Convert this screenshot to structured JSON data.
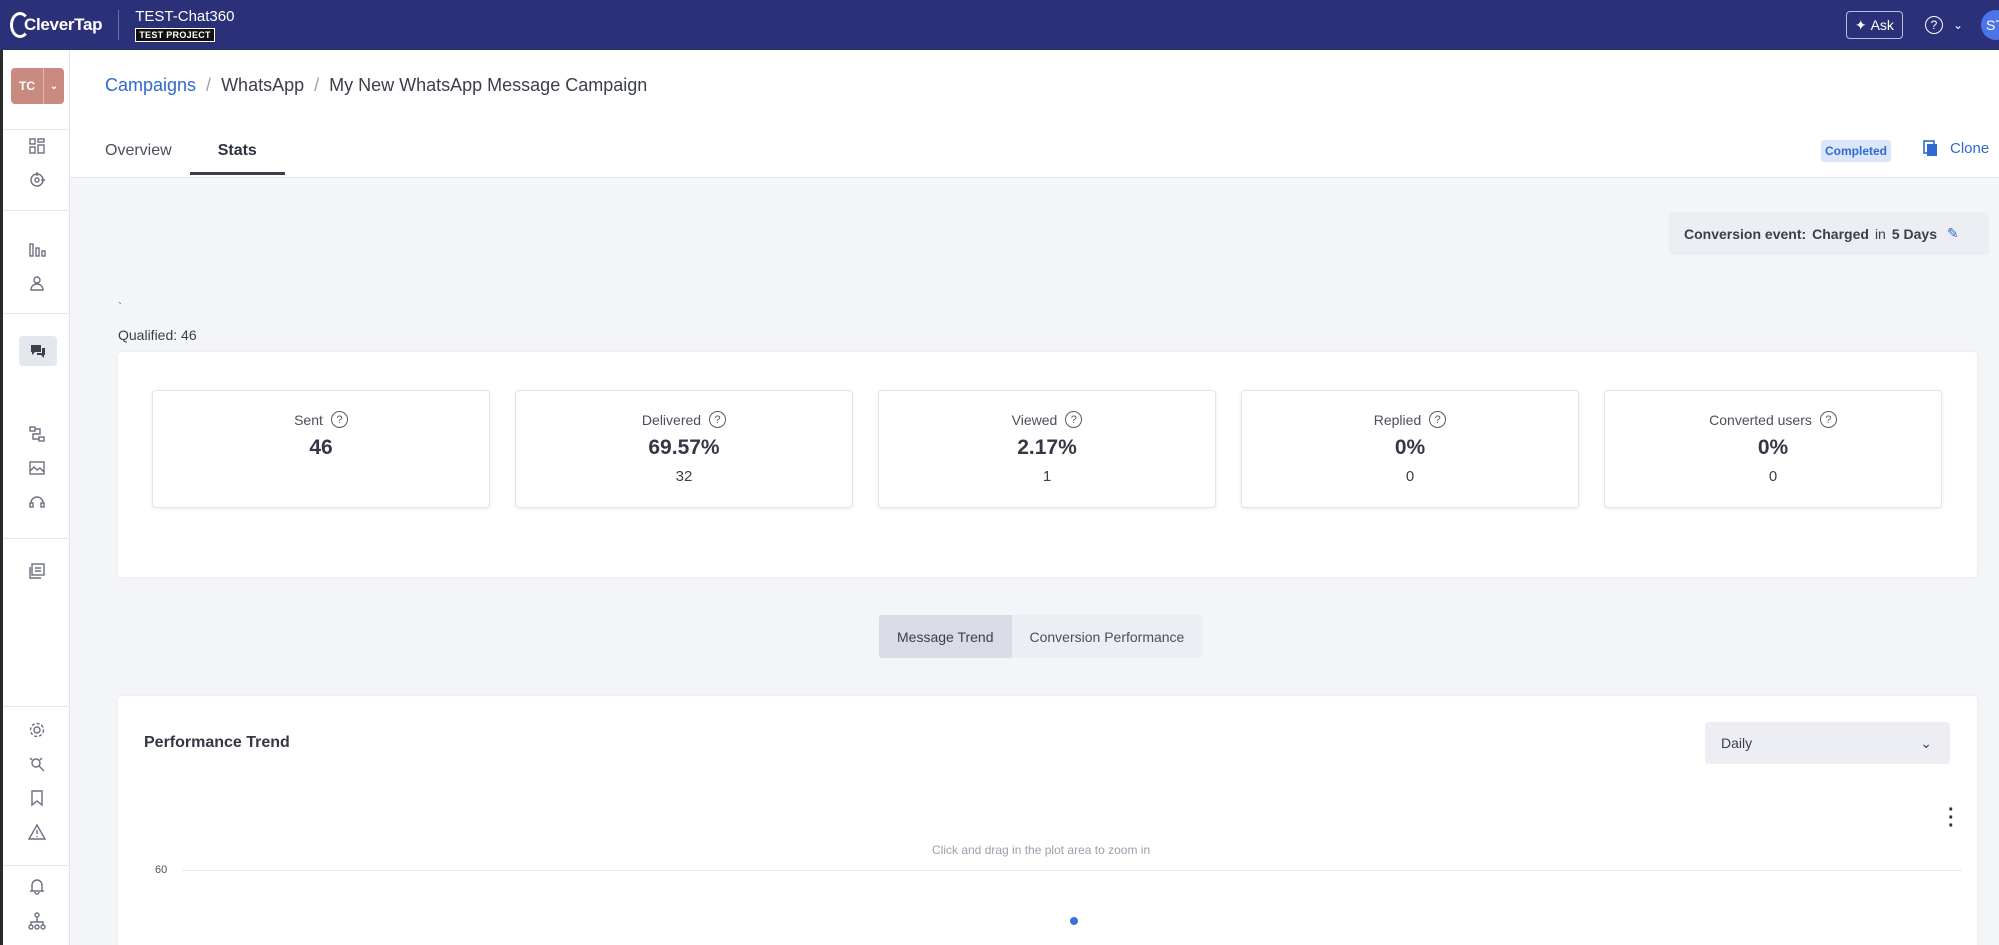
{
  "topbar": {
    "logo_text": "CleverTap",
    "project_name": "TEST-Chat360",
    "project_badge": "TEST PROJECT",
    "ask_label": "Ask",
    "user_initials": "ST"
  },
  "sidebar": {
    "account_initials": "TC"
  },
  "breadcrumb": {
    "items": [
      "Campaigns",
      "WhatsApp",
      "My New WhatsApp Message Campaign"
    ],
    "separator": "/"
  },
  "tabs": [
    "Overview",
    "Stats"
  ],
  "active_tab": "Stats",
  "status": "Completed",
  "clone_label": "Clone",
  "conversion": {
    "label": "Conversion event:",
    "event": "Charged",
    "in_word": "in",
    "window": "5 Days"
  },
  "backtick": "`",
  "qualified": "Qualified: 46",
  "stats": [
    {
      "label": "Sent",
      "value": "46",
      "sub": ""
    },
    {
      "label": "Delivered",
      "value": "69.57%",
      "sub": "32"
    },
    {
      "label": "Viewed",
      "value": "2.17%",
      "sub": "1"
    },
    {
      "label": "Replied",
      "value": "0%",
      "sub": "0"
    },
    {
      "label": "Converted users",
      "value": "0%",
      "sub": "0"
    }
  ],
  "view_toggle": {
    "options": [
      "Message Trend",
      "Conversion Performance"
    ],
    "selected": "Message Trend"
  },
  "trend": {
    "title": "Performance Trend",
    "granularity": "Daily",
    "zoom_hint": "Click and drag in the plot area to zoom in",
    "y_ticks": [
      "60"
    ]
  },
  "colors": {
    "topbar": "#2b3179",
    "accent": "#2e6ad1",
    "badge_bg": "#dce6fb",
    "account_avatar": "#c98a80",
    "series_point": "#3b6fe0"
  }
}
